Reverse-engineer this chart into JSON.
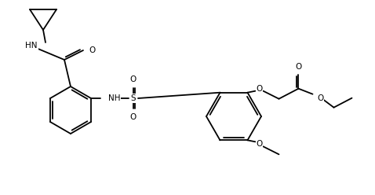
{
  "bg_color": "#ffffff",
  "line_color": "#000000",
  "lw": 1.3,
  "fs": 7.5,
  "figsize": [
    4.78,
    2.48
  ],
  "dpi": 100,
  "xlim": [
    0,
    478
  ],
  "ylim": [
    0,
    248
  ]
}
